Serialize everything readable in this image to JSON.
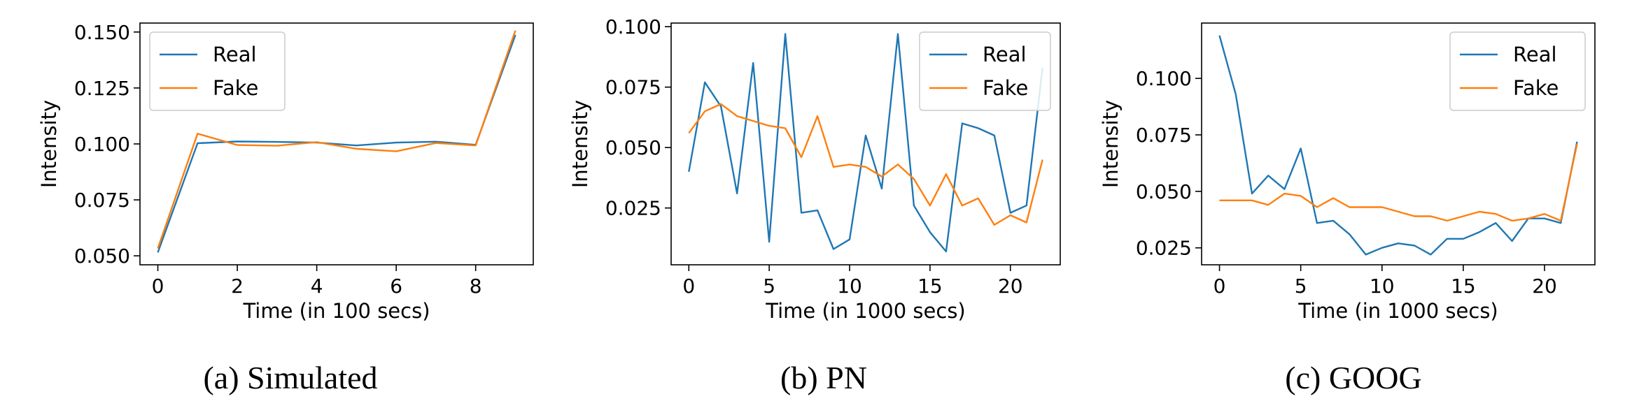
{
  "colors": {
    "real": "#1f77b4",
    "fake": "#ff7f0e"
  },
  "chart_data": [
    {
      "type": "line",
      "caption": "(a) Simulated",
      "xlabel": "Time (in 100 secs)",
      "ylabel": "Intensity",
      "xlim": [
        -0.45,
        9.45
      ],
      "ylim": [
        0.046,
        0.154
      ],
      "xticks": [
        0,
        2,
        4,
        6,
        8
      ],
      "xtick_labels": [
        "0",
        "2",
        "4",
        "6",
        "8"
      ],
      "yticks": [
        0.05,
        0.075,
        0.1,
        0.125,
        0.15
      ],
      "ytick_labels": [
        "0.050",
        "0.075",
        "0.100",
        "0.125",
        "0.150"
      ],
      "legend": "top-left",
      "series": [
        {
          "name": "Real",
          "color": "#1f77b4",
          "x": [
            0,
            1,
            2,
            3,
            4,
            5,
            6,
            7,
            8,
            9
          ],
          "y": [
            0.0515,
            0.1003,
            0.1011,
            0.1009,
            0.1006,
            0.0993,
            0.1006,
            0.101,
            0.0996,
            0.1487
          ]
        },
        {
          "name": "Fake",
          "color": "#ff7f0e",
          "x": [
            0,
            1,
            2,
            3,
            4,
            5,
            6,
            7,
            8,
            9
          ],
          "y": [
            0.0533,
            0.1046,
            0.0995,
            0.0992,
            0.1008,
            0.0978,
            0.0967,
            0.1004,
            0.0993,
            0.1507
          ]
        }
      ]
    },
    {
      "type": "line",
      "caption": "(b) PN",
      "xlabel": "Time (in 1000 secs)",
      "ylabel": "Intensity",
      "xlim": [
        -1.1,
        23.1
      ],
      "ylim": [
        0.0015,
        0.1015
      ],
      "xticks": [
        0,
        5,
        10,
        15,
        20
      ],
      "xtick_labels": [
        "0",
        "5",
        "10",
        "15",
        "20"
      ],
      "yticks": [
        0.025,
        0.05,
        0.075,
        0.1
      ],
      "ytick_labels": [
        "0.025",
        "0.050",
        "0.075",
        "0.100"
      ],
      "legend": "top-right",
      "series": [
        {
          "name": "Real",
          "color": "#1f77b4",
          "x": [
            0,
            1,
            2,
            3,
            4,
            5,
            6,
            7,
            8,
            9,
            10,
            11,
            12,
            13,
            14,
            15,
            16,
            17,
            18,
            19,
            20,
            21,
            22
          ],
          "y": [
            0.04,
            0.077,
            0.067,
            0.031,
            0.085,
            0.011,
            0.097,
            0.023,
            0.024,
            0.008,
            0.012,
            0.055,
            0.033,
            0.097,
            0.026,
            0.015,
            0.007,
            0.06,
            0.058,
            0.055,
            0.023,
            0.026,
            0.083
          ]
        },
        {
          "name": "Fake",
          "color": "#ff7f0e",
          "x": [
            0,
            1,
            2,
            3,
            4,
            5,
            6,
            7,
            8,
            9,
            10,
            11,
            12,
            13,
            14,
            15,
            16,
            17,
            18,
            19,
            20,
            21,
            22
          ],
          "y": [
            0.056,
            0.065,
            0.068,
            0.063,
            0.061,
            0.059,
            0.058,
            0.046,
            0.063,
            0.042,
            0.043,
            0.042,
            0.038,
            0.043,
            0.037,
            0.026,
            0.039,
            0.026,
            0.029,
            0.018,
            0.022,
            0.019,
            0.045
          ]
        }
      ]
    },
    {
      "type": "line",
      "caption": "(c) GOOG",
      "xlabel": "Time (in 1000 secs)",
      "ylabel": "Intensity",
      "xlim": [
        -1.1,
        23.1
      ],
      "ylim": [
        0.0175,
        0.1245
      ],
      "xticks": [
        0,
        5,
        10,
        15,
        20
      ],
      "xtick_labels": [
        "0",
        "5",
        "10",
        "15",
        "20"
      ],
      "yticks": [
        0.025,
        0.05,
        0.075,
        0.1
      ],
      "ytick_labels": [
        "0.025",
        "0.050",
        "0.075",
        "0.100"
      ],
      "legend": "top-right",
      "series": [
        {
          "name": "Real",
          "color": "#1f77b4",
          "x": [
            0,
            1,
            2,
            3,
            4,
            5,
            6,
            7,
            8,
            9,
            10,
            11,
            12,
            13,
            14,
            15,
            16,
            17,
            18,
            19,
            20,
            21,
            22
          ],
          "y": [
            0.119,
            0.093,
            0.049,
            0.057,
            0.051,
            0.069,
            0.036,
            0.037,
            0.031,
            0.022,
            0.025,
            0.027,
            0.026,
            0.022,
            0.029,
            0.029,
            0.032,
            0.036,
            0.028,
            0.038,
            0.038,
            0.036,
            0.072
          ]
        },
        {
          "name": "Fake",
          "color": "#ff7f0e",
          "x": [
            0,
            1,
            2,
            3,
            4,
            5,
            6,
            7,
            8,
            9,
            10,
            11,
            12,
            13,
            14,
            15,
            16,
            17,
            18,
            19,
            20,
            21,
            22
          ],
          "y": [
            0.046,
            0.046,
            0.046,
            0.044,
            0.049,
            0.048,
            0.043,
            0.047,
            0.043,
            0.043,
            0.043,
            0.041,
            0.039,
            0.039,
            0.037,
            0.039,
            0.041,
            0.04,
            0.037,
            0.038,
            0.04,
            0.037,
            0.071
          ]
        }
      ]
    }
  ]
}
